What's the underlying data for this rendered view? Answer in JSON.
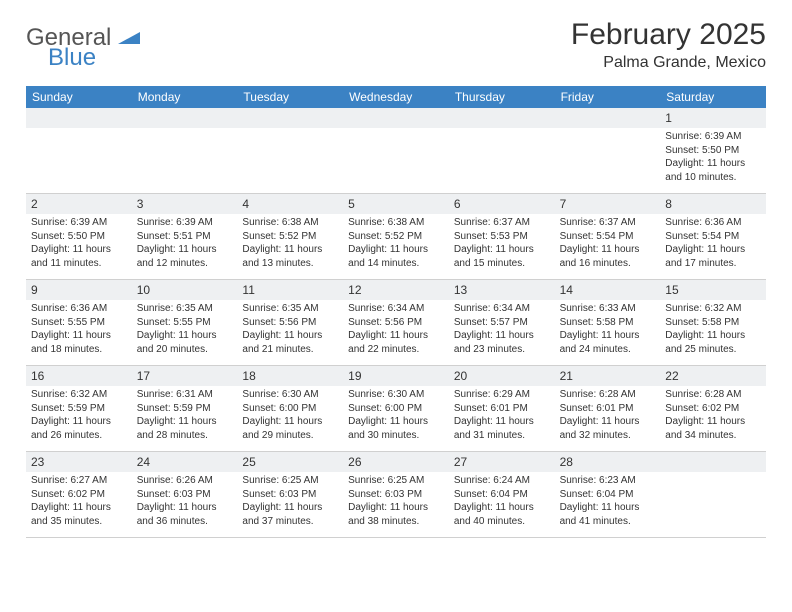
{
  "logo": {
    "part1": "General",
    "part2": "Blue"
  },
  "title": "February 2025",
  "subtitle": "Palma Grande, Mexico",
  "header_bg": "#3b82c4",
  "daynum_bg": "#eef0f2",
  "border_color": "#d0d0d0",
  "text_color": "#333333",
  "weekdays": [
    "Sunday",
    "Monday",
    "Tuesday",
    "Wednesday",
    "Thursday",
    "Friday",
    "Saturday"
  ],
  "weeks": [
    [
      null,
      null,
      null,
      null,
      null,
      null,
      {
        "d": "1",
        "sr": "Sunrise: 6:39 AM",
        "ss": "Sunset: 5:50 PM",
        "dl": "Daylight: 11 hours and 10 minutes."
      }
    ],
    [
      {
        "d": "2",
        "sr": "Sunrise: 6:39 AM",
        "ss": "Sunset: 5:50 PM",
        "dl": "Daylight: 11 hours and 11 minutes."
      },
      {
        "d": "3",
        "sr": "Sunrise: 6:39 AM",
        "ss": "Sunset: 5:51 PM",
        "dl": "Daylight: 11 hours and 12 minutes."
      },
      {
        "d": "4",
        "sr": "Sunrise: 6:38 AM",
        "ss": "Sunset: 5:52 PM",
        "dl": "Daylight: 11 hours and 13 minutes."
      },
      {
        "d": "5",
        "sr": "Sunrise: 6:38 AM",
        "ss": "Sunset: 5:52 PM",
        "dl": "Daylight: 11 hours and 14 minutes."
      },
      {
        "d": "6",
        "sr": "Sunrise: 6:37 AM",
        "ss": "Sunset: 5:53 PM",
        "dl": "Daylight: 11 hours and 15 minutes."
      },
      {
        "d": "7",
        "sr": "Sunrise: 6:37 AM",
        "ss": "Sunset: 5:54 PM",
        "dl": "Daylight: 11 hours and 16 minutes."
      },
      {
        "d": "8",
        "sr": "Sunrise: 6:36 AM",
        "ss": "Sunset: 5:54 PM",
        "dl": "Daylight: 11 hours and 17 minutes."
      }
    ],
    [
      {
        "d": "9",
        "sr": "Sunrise: 6:36 AM",
        "ss": "Sunset: 5:55 PM",
        "dl": "Daylight: 11 hours and 18 minutes."
      },
      {
        "d": "10",
        "sr": "Sunrise: 6:35 AM",
        "ss": "Sunset: 5:55 PM",
        "dl": "Daylight: 11 hours and 20 minutes."
      },
      {
        "d": "11",
        "sr": "Sunrise: 6:35 AM",
        "ss": "Sunset: 5:56 PM",
        "dl": "Daylight: 11 hours and 21 minutes."
      },
      {
        "d": "12",
        "sr": "Sunrise: 6:34 AM",
        "ss": "Sunset: 5:56 PM",
        "dl": "Daylight: 11 hours and 22 minutes."
      },
      {
        "d": "13",
        "sr": "Sunrise: 6:34 AM",
        "ss": "Sunset: 5:57 PM",
        "dl": "Daylight: 11 hours and 23 minutes."
      },
      {
        "d": "14",
        "sr": "Sunrise: 6:33 AM",
        "ss": "Sunset: 5:58 PM",
        "dl": "Daylight: 11 hours and 24 minutes."
      },
      {
        "d": "15",
        "sr": "Sunrise: 6:32 AM",
        "ss": "Sunset: 5:58 PM",
        "dl": "Daylight: 11 hours and 25 minutes."
      }
    ],
    [
      {
        "d": "16",
        "sr": "Sunrise: 6:32 AM",
        "ss": "Sunset: 5:59 PM",
        "dl": "Daylight: 11 hours and 26 minutes."
      },
      {
        "d": "17",
        "sr": "Sunrise: 6:31 AM",
        "ss": "Sunset: 5:59 PM",
        "dl": "Daylight: 11 hours and 28 minutes."
      },
      {
        "d": "18",
        "sr": "Sunrise: 6:30 AM",
        "ss": "Sunset: 6:00 PM",
        "dl": "Daylight: 11 hours and 29 minutes."
      },
      {
        "d": "19",
        "sr": "Sunrise: 6:30 AM",
        "ss": "Sunset: 6:00 PM",
        "dl": "Daylight: 11 hours and 30 minutes."
      },
      {
        "d": "20",
        "sr": "Sunrise: 6:29 AM",
        "ss": "Sunset: 6:01 PM",
        "dl": "Daylight: 11 hours and 31 minutes."
      },
      {
        "d": "21",
        "sr": "Sunrise: 6:28 AM",
        "ss": "Sunset: 6:01 PM",
        "dl": "Daylight: 11 hours and 32 minutes."
      },
      {
        "d": "22",
        "sr": "Sunrise: 6:28 AM",
        "ss": "Sunset: 6:02 PM",
        "dl": "Daylight: 11 hours and 34 minutes."
      }
    ],
    [
      {
        "d": "23",
        "sr": "Sunrise: 6:27 AM",
        "ss": "Sunset: 6:02 PM",
        "dl": "Daylight: 11 hours and 35 minutes."
      },
      {
        "d": "24",
        "sr": "Sunrise: 6:26 AM",
        "ss": "Sunset: 6:03 PM",
        "dl": "Daylight: 11 hours and 36 minutes."
      },
      {
        "d": "25",
        "sr": "Sunrise: 6:25 AM",
        "ss": "Sunset: 6:03 PM",
        "dl": "Daylight: 11 hours and 37 minutes."
      },
      {
        "d": "26",
        "sr": "Sunrise: 6:25 AM",
        "ss": "Sunset: 6:03 PM",
        "dl": "Daylight: 11 hours and 38 minutes."
      },
      {
        "d": "27",
        "sr": "Sunrise: 6:24 AM",
        "ss": "Sunset: 6:04 PM",
        "dl": "Daylight: 11 hours and 40 minutes."
      },
      {
        "d": "28",
        "sr": "Sunrise: 6:23 AM",
        "ss": "Sunset: 6:04 PM",
        "dl": "Daylight: 11 hours and 41 minutes."
      },
      null
    ]
  ]
}
